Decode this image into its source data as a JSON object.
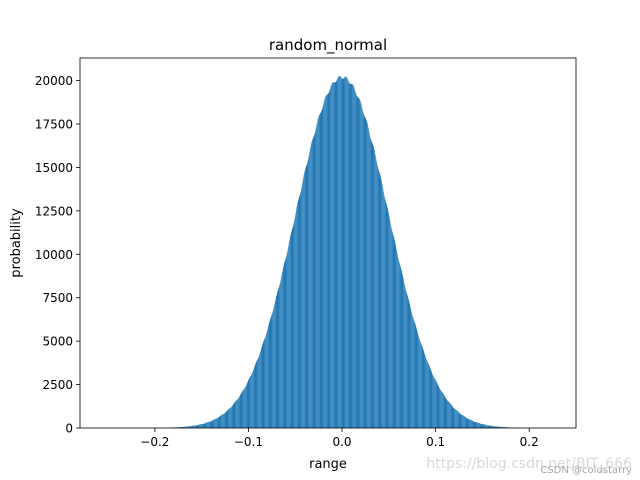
{
  "chart_data": {
    "type": "bar",
    "subtype": "histogram",
    "title": "random_normal",
    "xlabel": "range",
    "ylabel": "probability",
    "xlim": [
      -0.28,
      0.25
    ],
    "ylim": [
      0,
      21300
    ],
    "xticks": [
      -0.2,
      -0.1,
      0.0,
      0.1,
      0.2
    ],
    "xtick_labels": [
      "−0.2",
      "−0.1",
      "0.0",
      "0.1",
      "0.2"
    ],
    "yticks": [
      0,
      2500,
      5000,
      7500,
      10000,
      12500,
      15000,
      17500,
      20000
    ],
    "ytick_labels": [
      "0",
      "2500",
      "5000",
      "7500",
      "10000",
      "12500",
      "15000",
      "17500",
      "20000"
    ],
    "grid": false,
    "series": [
      {
        "distribution": "normal",
        "mean": 0.0,
        "std": 0.05,
        "peak_count": 20200,
        "bin_range": [
          -0.25,
          0.25
        ],
        "bin_count": 1000,
        "color": "#1f77b4"
      }
    ]
  },
  "watermarks": {
    "url": "https://blog.csdn.net/BIT_666",
    "credit": "CSDN @coldstarry"
  }
}
